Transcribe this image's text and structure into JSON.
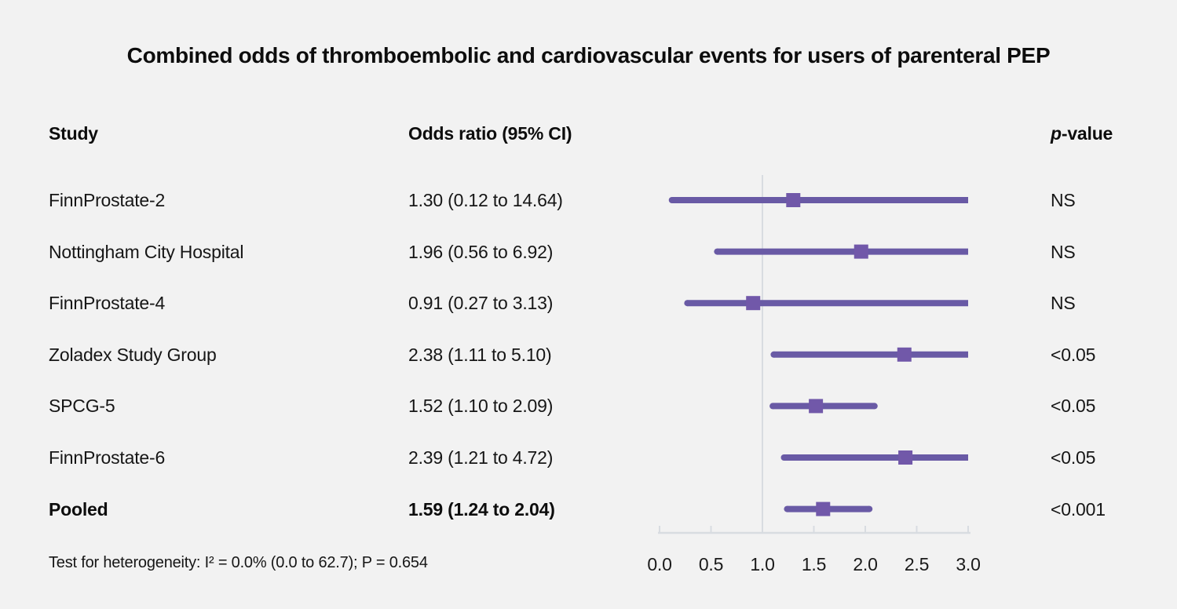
{
  "title": "Combined odds of thromboembolic and cardiovascular events for users of parenteral PEP",
  "columns": {
    "study": "Study",
    "odds_ratio": "Odds ratio (95% CI)",
    "p_value": {
      "italic": "p",
      "rest": "-value"
    }
  },
  "footer": "Test for heterogeneity: I² = 0.0% (0.0 to 62.7); P = 0.654",
  "colors": {
    "background": "#f2f2f2",
    "ci_line": "#695aa5",
    "marker": "#7158a9",
    "axis": "#d8dce1",
    "text": "#111111"
  },
  "chart_data": {
    "type": "forest",
    "title": "Combined odds of thromboembolic and cardiovascular events for users of parenteral PEP",
    "x_axis": {
      "label": "",
      "ticks": [
        0.0,
        0.5,
        1.0,
        1.5,
        2.0,
        2.5,
        3.0
      ],
      "tick_labels": [
        "0.0",
        "0.5",
        "1.0",
        "1.5",
        "2.0",
        "2.5",
        "3.0"
      ],
      "range": [
        0.0,
        3.0
      ],
      "clamp_max": 3.0,
      "reference_line": 1.0
    },
    "studies": [
      {
        "label": "FinnProstate-2",
        "or": 1.3,
        "ci_low": 0.12,
        "ci_high": 14.64,
        "or_text": "1.30 (0.12 to 14.64)",
        "p": "NS",
        "bold": false
      },
      {
        "label": "Nottingham City Hospital",
        "or": 1.96,
        "ci_low": 0.56,
        "ci_high": 6.92,
        "or_text": "1.96 (0.56 to 6.92)",
        "p": "NS",
        "bold": false
      },
      {
        "label": "FinnProstate-4",
        "or": 0.91,
        "ci_low": 0.27,
        "ci_high": 3.13,
        "or_text": "0.91 (0.27 to 3.13)",
        "p": "NS",
        "bold": false
      },
      {
        "label": "Zoladex Study Group",
        "or": 2.38,
        "ci_low": 1.11,
        "ci_high": 5.1,
        "or_text": "2.38 (1.11 to 5.10)",
        "p": "<0.05",
        "bold": false
      },
      {
        "label": "SPCG-5",
        "or": 1.52,
        "ci_low": 1.1,
        "ci_high": 2.09,
        "or_text": "1.52 (1.10 to 2.09)",
        "p": "<0.05",
        "bold": false
      },
      {
        "label": "FinnProstate-6",
        "or": 2.39,
        "ci_low": 1.21,
        "ci_high": 4.72,
        "or_text": "2.39 (1.21 to 4.72)",
        "p": "<0.05",
        "bold": false
      },
      {
        "label": "Pooled",
        "or": 1.59,
        "ci_low": 1.24,
        "ci_high": 2.04,
        "or_text": "1.59 (1.24 to 2.04)",
        "p": "<0.001",
        "bold": true
      }
    ]
  }
}
